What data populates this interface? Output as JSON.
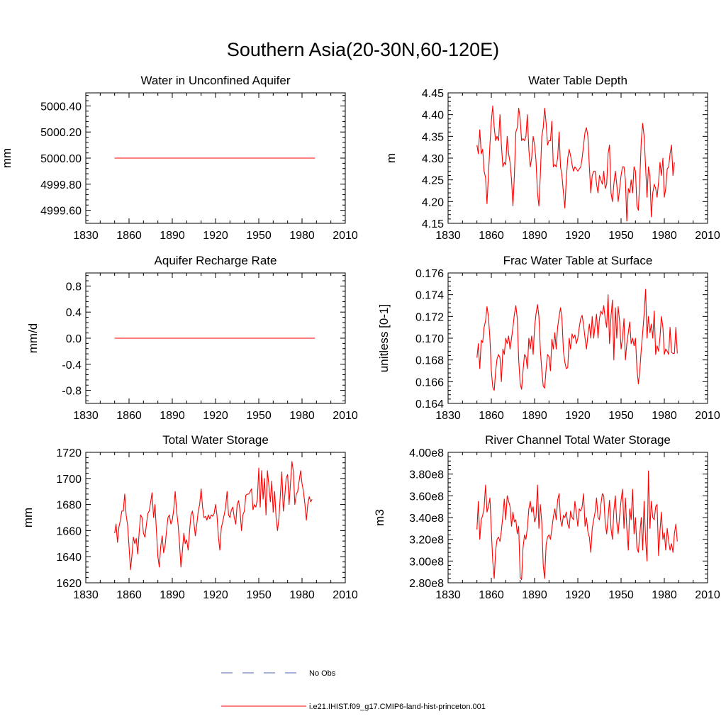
{
  "title": "Southern Asia(20-30N,60-120E)",
  "colors": {
    "model": "#ff0000",
    "obs": "#4c5fb0"
  },
  "legend": [
    {
      "label": "No Obs",
      "style": "dashed",
      "color": "#4c5fb0"
    },
    {
      "label": "i.e21.IHIST.f09_g17.CMIP6-land-hist-princeton.001",
      "style": "solid",
      "color": "#ff0000"
    }
  ],
  "chart_data": [
    {
      "type": "line",
      "title": "Water in Unconfined Aquifer",
      "ylabel": "mm",
      "xlim": [
        1830,
        2010
      ],
      "ylim": [
        4999.5,
        5000.5
      ],
      "xticks": [
        1830,
        1860,
        1890,
        1920,
        1950,
        1980,
        2010
      ],
      "yticks": [
        4999.6,
        4999.8,
        5000.0,
        5000.2,
        5000.4
      ],
      "ytick_labels": [
        "4999.60",
        "4999.80",
        "5000.00",
        "5000.20",
        "5000.40"
      ],
      "series": [
        {
          "x": [
            1850,
            1989
          ],
          "values": [
            5000.0,
            5000.0
          ]
        }
      ]
    },
    {
      "type": "line",
      "title": "Water Table Depth",
      "ylabel": "m",
      "xlim": [
        1830,
        2010
      ],
      "ylim": [
        4.15,
        4.45
      ],
      "xticks": [
        1830,
        1860,
        1890,
        1920,
        1950,
        1980,
        2010
      ],
      "yticks": [
        4.15,
        4.2,
        4.25,
        4.3,
        4.35,
        4.4,
        4.45
      ],
      "ytick_labels": [
        "4.15",
        "4.20",
        "4.25",
        "4.30",
        "4.35",
        "4.40",
        "4.45"
      ],
      "series": [
        {
          "x_start": 1850,
          "x_step": 1,
          "values": [
            4.33,
            4.31,
            4.365,
            4.31,
            4.32,
            4.27,
            4.255,
            4.195,
            4.26,
            4.33,
            4.385,
            4.42,
            4.37,
            4.34,
            4.35,
            4.34,
            4.4,
            4.33,
            4.28,
            4.29,
            4.285,
            4.35,
            4.31,
            4.29,
            4.25,
            4.19,
            4.26,
            4.36,
            4.37,
            4.415,
            4.39,
            4.34,
            4.345,
            4.34,
            4.35,
            4.4,
            4.32,
            4.28,
            4.3,
            4.35,
            4.33,
            4.295,
            4.22,
            4.19,
            4.26,
            4.35,
            4.37,
            4.415,
            4.38,
            4.33,
            4.34,
            4.34,
            4.385,
            4.28,
            4.285,
            4.28,
            4.3,
            4.36,
            4.28,
            4.26,
            4.22,
            4.185,
            4.25,
            4.3,
            4.32,
            4.305,
            4.285,
            4.27,
            4.28,
            4.275,
            4.27,
            4.275,
            4.28,
            4.3,
            4.33,
            4.36,
            4.37,
            4.35,
            4.28,
            4.22,
            4.26,
            4.27,
            4.27,
            4.24,
            4.22,
            4.26,
            4.25,
            4.24,
            4.27,
            4.23,
            4.24,
            4.31,
            4.33,
            4.22,
            4.2,
            4.24,
            4.27,
            4.24,
            4.2,
            4.23,
            4.26,
            4.28,
            4.28,
            4.25,
            4.155,
            4.23,
            4.22,
            4.25,
            4.22,
            4.28,
            4.27,
            4.19,
            4.18,
            4.25,
            4.34,
            4.38,
            4.35,
            4.28,
            4.21,
            4.28,
            4.26,
            4.165,
            4.22,
            4.24,
            4.23,
            4.21,
            4.245,
            4.29,
            4.26,
            4.3,
            4.21,
            4.23,
            4.275,
            4.28,
            4.31,
            4.33,
            4.26,
            4.29
          ]
        }
      ]
    },
    {
      "type": "line",
      "title": "Aquifer Recharge Rate",
      "ylabel": "mm/d",
      "xlim": [
        1830,
        2010
      ],
      "ylim": [
        -1.0,
        1.0
      ],
      "xticks": [
        1830,
        1860,
        1890,
        1920,
        1950,
        1980,
        2010
      ],
      "yticks": [
        -0.8,
        -0.4,
        0.0,
        0.4,
        0.8
      ],
      "ytick_labels": [
        "-0.8",
        "-0.4",
        "0.0",
        "0.4",
        "0.8"
      ],
      "series": [
        {
          "x": [
            1850,
            1989
          ],
          "values": [
            0.0,
            0.0
          ]
        }
      ]
    },
    {
      "type": "line",
      "title": "Frac Water Table at Surface",
      "ylabel": "unitless [0-1]",
      "xlim": [
        1830,
        2010
      ],
      "ylim": [
        0.164,
        0.176
      ],
      "xticks": [
        1830,
        1860,
        1890,
        1920,
        1950,
        1980,
        2010
      ],
      "yticks": [
        0.164,
        0.166,
        0.168,
        0.17,
        0.172,
        0.174,
        0.176
      ],
      "ytick_labels": [
        "0.164",
        "0.166",
        "0.168",
        "0.170",
        "0.172",
        "0.174",
        "0.176"
      ],
      "series": [
        {
          "x_start": 1850,
          "x_step": 1,
          "values": [
            0.1682,
            0.1695,
            0.1672,
            0.1698,
            0.1696,
            0.171,
            0.1716,
            0.1729,
            0.172,
            0.17,
            0.167,
            0.1655,
            0.1652,
            0.167,
            0.1681,
            0.1685,
            0.1682,
            0.166,
            0.169,
            0.1685,
            0.17,
            0.1695,
            0.1702,
            0.169,
            0.17,
            0.171,
            0.1722,
            0.173,
            0.1718,
            0.168,
            0.1658,
            0.1653,
            0.167,
            0.1685,
            0.1683,
            0.1672,
            0.17,
            0.169,
            0.1702,
            0.1685,
            0.171,
            0.1722,
            0.1731,
            0.172,
            0.169,
            0.167,
            0.1656,
            0.1654,
            0.1672,
            0.1685,
            0.1683,
            0.167,
            0.1699,
            0.169,
            0.1705,
            0.169,
            0.171,
            0.172,
            0.1728,
            0.1718,
            0.1688,
            0.1678,
            0.1672,
            0.1673,
            0.17,
            0.169,
            0.1704,
            0.17,
            0.1703,
            0.1695,
            0.17,
            0.171,
            0.1718,
            0.1721,
            0.1712,
            0.17,
            0.169,
            0.1703,
            0.1713,
            0.17,
            0.172,
            0.17,
            0.1712,
            0.1722,
            0.17,
            0.1718,
            0.1725,
            0.1722,
            0.173,
            0.1718,
            0.171,
            0.174,
            0.1695,
            0.172,
            0.1735,
            0.168,
            0.1728,
            0.17,
            0.1729,
            0.1715,
            0.169,
            0.17,
            0.1718,
            0.168,
            0.1695,
            0.1705,
            0.1715,
            0.1695,
            0.17,
            0.1693,
            0.17,
            0.1672,
            0.1658,
            0.167,
            0.169,
            0.1705,
            0.1722,
            0.1745,
            0.17,
            0.172,
            0.1705,
            0.1713,
            0.17,
            0.1725,
            0.1685,
            0.1693,
            0.1688,
            0.1701,
            0.172,
            0.171,
            0.1685,
            0.169,
            0.1688,
            0.1685,
            0.171,
            0.1687,
            0.1686,
            0.1686,
            0.171,
            0.1686
          ]
        }
      ]
    },
    {
      "type": "line",
      "title": "Total Water Storage",
      "ylabel": "mm",
      "xlim": [
        1830,
        2010
      ],
      "ylim": [
        1620,
        1720
      ],
      "xticks": [
        1830,
        1860,
        1890,
        1920,
        1950,
        1980,
        2010
      ],
      "yticks": [
        1620,
        1640,
        1660,
        1680,
        1700,
        1720
      ],
      "ytick_labels": [
        "1620",
        "1640",
        "1660",
        "1680",
        "1700",
        "1720"
      ],
      "series": [
        {
          "x_start": 1850,
          "x_step": 1,
          "values": [
            1658,
            1665,
            1651,
            1663,
            1668,
            1675,
            1675,
            1688,
            1672,
            1664,
            1648,
            1630,
            1641,
            1655,
            1650,
            1654,
            1642,
            1658,
            1672,
            1670,
            1658,
            1655,
            1664,
            1673,
            1675,
            1682,
            1689,
            1670,
            1680,
            1660,
            1640,
            1632,
            1648,
            1656,
            1643,
            1648,
            1660,
            1670,
            1672,
            1665,
            1668,
            1676,
            1690,
            1675,
            1665,
            1650,
            1632,
            1644,
            1658,
            1650,
            1653,
            1645,
            1660,
            1672,
            1675,
            1666,
            1656,
            1665,
            1675,
            1680,
            1692,
            1678,
            1670,
            1671,
            1668,
            1672,
            1669,
            1672,
            1671,
            1673,
            1680,
            1672,
            1655,
            1645,
            1662,
            1667,
            1672,
            1678,
            1690,
            1672,
            1670,
            1676,
            1678,
            1670,
            1665,
            1680,
            1683,
            1675,
            1660,
            1672,
            1675,
            1687,
            1688,
            1688,
            1690,
            1692,
            1676,
            1680,
            1678,
            1684,
            1708,
            1678,
            1706,
            1684,
            1700,
            1672,
            1706,
            1695,
            1682,
            1698,
            1674,
            1690,
            1670,
            1660,
            1670,
            1688,
            1705,
            1675,
            1686,
            1700,
            1703,
            1680,
            1696,
            1713,
            1705,
            1680,
            1688,
            1690,
            1698,
            1706,
            1696,
            1690,
            1680,
            1668,
            1680,
            1686,
            1682,
            1684
          ]
        }
      ]
    },
    {
      "type": "line",
      "title": "River Channel Total Water Storage",
      "ylabel": "m3",
      "xlim": [
        1830,
        2010
      ],
      "ylim": [
        280000000,
        400000000
      ],
      "xticks": [
        1830,
        1860,
        1890,
        1920,
        1950,
        1980,
        2010
      ],
      "yticks": [
        280000000,
        300000000,
        320000000,
        340000000,
        360000000,
        380000000,
        400000000
      ],
      "ytick_labels": [
        "2.80e8",
        "3.00e8",
        "3.20e8",
        "3.40e8",
        "3.60e8",
        "3.80e8",
        "4.00e8"
      ],
      "series": [
        {
          "x_start": 1850,
          "x_step": 1,
          "values": [
            329000000,
            355000000,
            320000000,
            338000000,
            342000000,
            349000000,
            370000000,
            345000000,
            350000000,
            358000000,
            328000000,
            300000000,
            284000000,
            310000000,
            320000000,
            322000000,
            318000000,
            328000000,
            342000000,
            357000000,
            338000000,
            360000000,
            355000000,
            350000000,
            332000000,
            345000000,
            336000000,
            338000000,
            325000000,
            332000000,
            285000000,
            283000000,
            312000000,
            324000000,
            320000000,
            330000000,
            348000000,
            355000000,
            345000000,
            350000000,
            336000000,
            340000000,
            370000000,
            330000000,
            352000000,
            335000000,
            296000000,
            284000000,
            315000000,
            322000000,
            324000000,
            320000000,
            330000000,
            340000000,
            348000000,
            338000000,
            356000000,
            362000000,
            338000000,
            332000000,
            342000000,
            340000000,
            345000000,
            334000000,
            330000000,
            346000000,
            340000000,
            338000000,
            355000000,
            344000000,
            332000000,
            348000000,
            346000000,
            350000000,
            362000000,
            332000000,
            340000000,
            327000000,
            322000000,
            308000000,
            330000000,
            338000000,
            345000000,
            358000000,
            340000000,
            338000000,
            352000000,
            362000000,
            360000000,
            335000000,
            325000000,
            340000000,
            356000000,
            330000000,
            320000000,
            346000000,
            360000000,
            336000000,
            325000000,
            342000000,
            356000000,
            366000000,
            330000000,
            358000000,
            330000000,
            310000000,
            348000000,
            338000000,
            366000000,
            325000000,
            340000000,
            312000000,
            308000000,
            325000000,
            340000000,
            310000000,
            355000000,
            320000000,
            300000000,
            383000000,
            330000000,
            355000000,
            340000000,
            338000000,
            350000000,
            352000000,
            305000000,
            328000000,
            345000000,
            320000000,
            326000000,
            310000000,
            330000000,
            318000000,
            310000000,
            316000000,
            308000000,
            325000000,
            334000000,
            318000000
          ]
        }
      ]
    }
  ]
}
